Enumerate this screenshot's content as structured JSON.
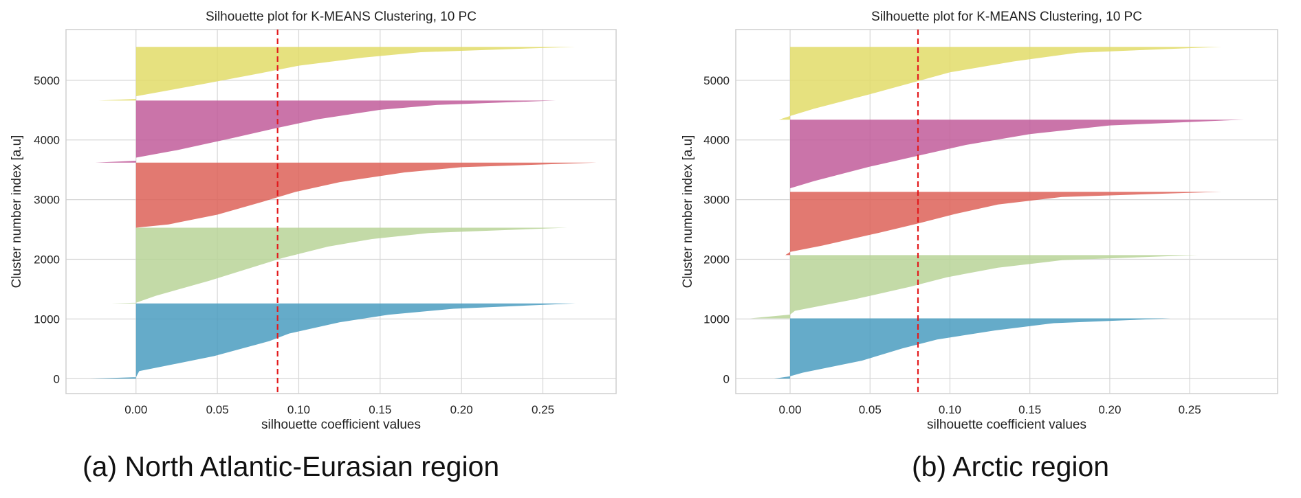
{
  "chart_data": [
    {
      "type": "area",
      "title": "Silhouette plot for K-MEANS Clustering, 10 PC",
      "xlabel": "silhouette coefficient values",
      "ylabel": "Cluster number index [a.u]",
      "xlim": [
        -0.043,
        0.295
      ],
      "ylim": [
        -250,
        5850
      ],
      "xticks": [
        "0.00",
        "0.05",
        "0.10",
        "0.15",
        "0.20",
        "0.25"
      ],
      "xtick_values": [
        0,
        0.05,
        0.1,
        0.15,
        0.2,
        0.25
      ],
      "yticks": [
        "0",
        "1000",
        "2000",
        "3000",
        "4000",
        "5000"
      ],
      "ytick_values": [
        0,
        1000,
        2000,
        3000,
        4000,
        5000
      ],
      "grid": true,
      "average_silhouette": 0.087,
      "average_line_color": "#e31a1c",
      "series": [
        {
          "color": "#4a9cbf",
          "y_start": 0,
          "y_end": 1260,
          "profile": [
            [
              0,
              -0.028
            ],
            [
              0.02,
              0
            ],
            [
              0.1,
              0.002
            ],
            [
              0.3,
              0.048
            ],
            [
              0.5,
              0.082
            ],
            [
              0.6,
              0.094
            ],
            [
              0.75,
              0.125
            ],
            [
              0.85,
              0.155
            ],
            [
              0.93,
              0.195
            ],
            [
              1.0,
              0.27
            ]
          ]
        },
        {
          "color": "#b8d498",
          "y_start": 1260,
          "y_end": 2530,
          "profile": [
            [
              0,
              -0.015
            ],
            [
              0.01,
              0
            ],
            [
              0.1,
              0.012
            ],
            [
              0.3,
              0.045
            ],
            [
              0.5,
              0.075
            ],
            [
              0.6,
              0.09
            ],
            [
              0.75,
              0.118
            ],
            [
              0.85,
              0.145
            ],
            [
              0.93,
              0.18
            ],
            [
              1.0,
              0.265
            ]
          ]
        },
        {
          "color": "#dd6158",
          "y_start": 2530,
          "y_end": 3620,
          "profile": [
            [
              0,
              0.0
            ],
            [
              0.05,
              0.02
            ],
            [
              0.2,
              0.05
            ],
            [
              0.4,
              0.078
            ],
            [
              0.55,
              0.098
            ],
            [
              0.7,
              0.125
            ],
            [
              0.85,
              0.165
            ],
            [
              0.93,
              0.2
            ],
            [
              1.0,
              0.283
            ]
          ]
        },
        {
          "color": "#c15c9a",
          "y_start": 3620,
          "y_end": 4660,
          "profile": [
            [
              0,
              -0.025
            ],
            [
              0.03,
              0.0
            ],
            [
              0.08,
              0.0
            ],
            [
              0.2,
              0.025
            ],
            [
              0.4,
              0.06
            ],
            [
              0.55,
              0.085
            ],
            [
              0.7,
              0.112
            ],
            [
              0.85,
              0.15
            ],
            [
              0.93,
              0.185
            ],
            [
              1.0,
              0.258
            ]
          ]
        },
        {
          "color": "#e2dc68",
          "y_start": 4660,
          "y_end": 5560,
          "profile": [
            [
              0,
              -0.023
            ],
            [
              0.03,
              0.0
            ],
            [
              0.08,
              0.0
            ],
            [
              0.3,
              0.04
            ],
            [
              0.5,
              0.075
            ],
            [
              0.65,
              0.1
            ],
            [
              0.8,
              0.14
            ],
            [
              0.9,
              0.175
            ],
            [
              1.0,
              0.27
            ]
          ]
        }
      ]
    },
    {
      "type": "area",
      "title": "Silhouette plot for K-MEANS Clustering, 10 PC",
      "xlabel": "silhouette coefficient values",
      "ylabel": "Cluster number index [a.u]",
      "xlim": [
        -0.034,
        0.305
      ],
      "ylim": [
        -250,
        5850
      ],
      "xticks": [
        "0.00",
        "0.05",
        "0.10",
        "0.15",
        "0.20",
        "0.25"
      ],
      "xtick_values": [
        0,
        0.05,
        0.1,
        0.15,
        0.2,
        0.25
      ],
      "yticks": [
        "0",
        "1000",
        "2000",
        "3000",
        "4000",
        "5000"
      ],
      "ytick_values": [
        0,
        1000,
        2000,
        3000,
        4000,
        5000
      ],
      "grid": true,
      "average_silhouette": 0.08,
      "average_line_color": "#e31a1c",
      "series": [
        {
          "color": "#4a9cbf",
          "y_start": 0,
          "y_end": 1010,
          "profile": [
            [
              0,
              -0.01
            ],
            [
              0.04,
              0.0
            ],
            [
              0.1,
              0.008
            ],
            [
              0.3,
              0.045
            ],
            [
              0.5,
              0.07
            ],
            [
              0.65,
              0.092
            ],
            [
              0.8,
              0.128
            ],
            [
              0.92,
              0.165
            ],
            [
              1.0,
              0.238
            ]
          ]
        },
        {
          "color": "#b8d498",
          "y_start": 1010,
          "y_end": 2070,
          "profile": [
            [
              0,
              -0.025
            ],
            [
              0.06,
              0.0
            ],
            [
              0.12,
              0.003
            ],
            [
              0.3,
              0.04
            ],
            [
              0.5,
              0.075
            ],
            [
              0.65,
              0.098
            ],
            [
              0.8,
              0.13
            ],
            [
              0.92,
              0.17
            ],
            [
              1.0,
              0.255
            ]
          ]
        },
        {
          "color": "#dd6158",
          "y_start": 2070,
          "y_end": 3130,
          "profile": [
            [
              0,
              -0.003
            ],
            [
              0.05,
              0.0
            ],
            [
              0.15,
              0.02
            ],
            [
              0.35,
              0.055
            ],
            [
              0.5,
              0.08
            ],
            [
              0.65,
              0.103
            ],
            [
              0.8,
              0.13
            ],
            [
              0.92,
              0.17
            ],
            [
              1.0,
              0.27
            ]
          ]
        },
        {
          "color": "#c15c9a",
          "y_start": 3130,
          "y_end": 4340,
          "profile": [
            [
              0,
              0.0
            ],
            [
              0.05,
              0.0
            ],
            [
              0.15,
              0.015
            ],
            [
              0.35,
              0.05
            ],
            [
              0.5,
              0.08
            ],
            [
              0.65,
              0.11
            ],
            [
              0.8,
              0.15
            ],
            [
              0.92,
              0.2
            ],
            [
              1.0,
              0.284
            ]
          ]
        },
        {
          "color": "#e2dc68",
          "y_start": 4340,
          "y_end": 5560,
          "profile": [
            [
              0,
              -0.007
            ],
            [
              0.05,
              0.0
            ],
            [
              0.15,
              0.015
            ],
            [
              0.35,
              0.05
            ],
            [
              0.5,
              0.075
            ],
            [
              0.65,
              0.1
            ],
            [
              0.8,
              0.14
            ],
            [
              0.92,
              0.18
            ],
            [
              1.0,
              0.27
            ]
          ]
        }
      ]
    }
  ],
  "captions": {
    "a": "(a) North Atlantic-Eurasian region",
    "b": "(b) Arctic region"
  }
}
